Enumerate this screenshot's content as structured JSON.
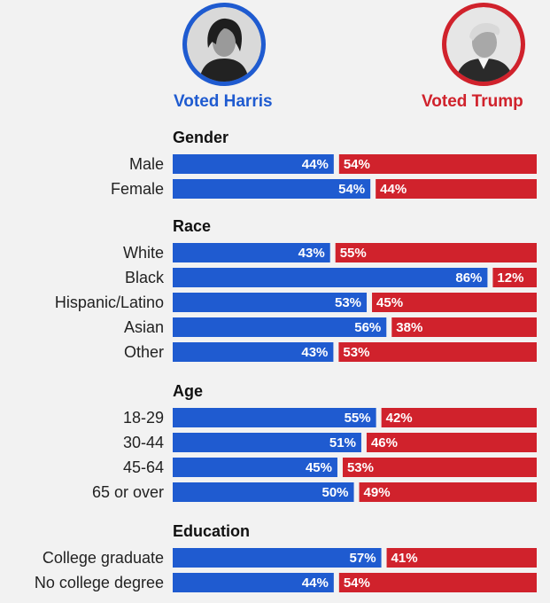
{
  "header": {
    "harris_label": "Voted Harris",
    "trump_label": "Voted Trump",
    "harris_icon": "harris-portrait-icon",
    "trump_icon": "trump-portrait-icon"
  },
  "colors": {
    "harris": "#1f5bd0",
    "trump": "#d0222c",
    "background": "#f2f2f2"
  },
  "chart_data": {
    "type": "bar",
    "orientation": "horizontal-stacked",
    "title": "",
    "series": [
      {
        "name": "Voted Harris"
      },
      {
        "name": "Voted Trump"
      }
    ],
    "groups": [
      {
        "label": "Gender",
        "rows": [
          {
            "category": "Male",
            "harris": 44,
            "trump": 54
          },
          {
            "category": "Female",
            "harris": 54,
            "trump": 44
          }
        ]
      },
      {
        "label": "Race",
        "rows": [
          {
            "category": "White",
            "harris": 43,
            "trump": 55
          },
          {
            "category": "Black",
            "harris": 86,
            "trump": 12
          },
          {
            "category": "Hispanic/Latino",
            "harris": 53,
            "trump": 45
          },
          {
            "category": "Asian",
            "harris": 56,
            "trump": 38
          },
          {
            "category": "Other",
            "harris": 43,
            "trump": 53
          }
        ]
      },
      {
        "label": "Age",
        "rows": [
          {
            "category": "18-29",
            "harris": 55,
            "trump": 42
          },
          {
            "category": "30-44",
            "harris": 51,
            "trump": 46
          },
          {
            "category": "45-64",
            "harris": 45,
            "trump": 53
          },
          {
            "category": "65 or over",
            "harris": 50,
            "trump": 49
          }
        ]
      },
      {
        "label": "Education",
        "rows": [
          {
            "category": "College graduate",
            "harris": 57,
            "trump": 41
          },
          {
            "category": "No college degree",
            "harris": 44,
            "trump": 54
          }
        ]
      }
    ]
  }
}
